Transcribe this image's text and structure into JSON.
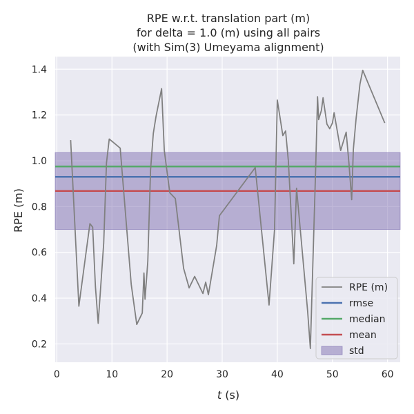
{
  "chart_data": {
    "type": "line",
    "title_lines": [
      "RPE w.r.t. translation part (m)",
      "for delta = 1.0 (m) using all pairs",
      "(with Sim(3) Umeyama alignment)"
    ],
    "xlabel_italic": "t",
    "xlabel_rest": " (s)",
    "ylabel": "RPE (m)",
    "xlim": [
      -0.3,
      62.3
    ],
    "ylim": [
      0.12,
      1.455
    ],
    "xticks": [
      0,
      10,
      20,
      30,
      40,
      50,
      60
    ],
    "yticks": [
      0.2,
      0.4,
      0.6,
      0.8,
      1.0,
      1.2,
      1.4
    ],
    "grid": true,
    "background": "#eaeaf2",
    "legend_position": "lower right",
    "legend": [
      "RPE (m)",
      "rmse",
      "median",
      "mean",
      "std"
    ],
    "series": [
      {
        "name": "RPE (m)",
        "color": "#808080",
        "x": [
          2.5,
          4.0,
          6.0,
          6.5,
          7.0,
          7.5,
          8.5,
          9.0,
          9.5,
          10.5,
          11.5,
          13.5,
          14.5,
          15.5,
          15.8,
          16.0,
          16.5,
          17.0,
          17.5,
          18.0,
          19.0,
          19.5,
          20.5,
          21.5,
          23.0,
          24.0,
          25.0,
          26.5,
          27.0,
          27.5,
          29.0,
          29.5,
          36.0,
          38.5,
          39.5,
          40.0,
          41.0,
          41.5,
          42.0,
          43.0,
          43.5,
          45.5,
          46.0,
          47.0,
          47.3,
          47.5,
          48.0,
          48.3,
          49.0,
          49.5,
          50.0,
          50.3,
          51.5,
          52.5,
          53.0,
          53.5,
          53.8,
          54.3,
          55.0,
          55.5,
          59.5
        ],
        "y": [
          1.09,
          0.365,
          0.725,
          0.71,
          0.45,
          0.29,
          0.64,
          0.99,
          1.095,
          1.075,
          1.055,
          0.46,
          0.285,
          0.335,
          0.51,
          0.395,
          0.56,
          0.96,
          1.12,
          1.195,
          1.315,
          1.045,
          0.86,
          0.835,
          0.53,
          0.445,
          0.495,
          0.42,
          0.47,
          0.415,
          0.63,
          0.76,
          0.97,
          0.37,
          0.7,
          1.265,
          1.11,
          1.13,
          1.0,
          0.55,
          0.88,
          0.345,
          0.18,
          1.0,
          1.28,
          1.18,
          1.22,
          1.275,
          1.16,
          1.14,
          1.165,
          1.21,
          1.045,
          1.125,
          0.99,
          0.83,
          1.05,
          1.185,
          1.335,
          1.395,
          1.165
        ]
      }
    ],
    "reference_lines": [
      {
        "name": "rmse",
        "value": 0.93,
        "color": "#4c72b0"
      },
      {
        "name": "median",
        "value": 0.975,
        "color": "#55a868"
      },
      {
        "name": "mean",
        "value": 0.868,
        "color": "#c44e52"
      }
    ],
    "band": {
      "name": "std",
      "lower": 0.7,
      "upper": 1.036,
      "color": "#8172b2"
    }
  }
}
